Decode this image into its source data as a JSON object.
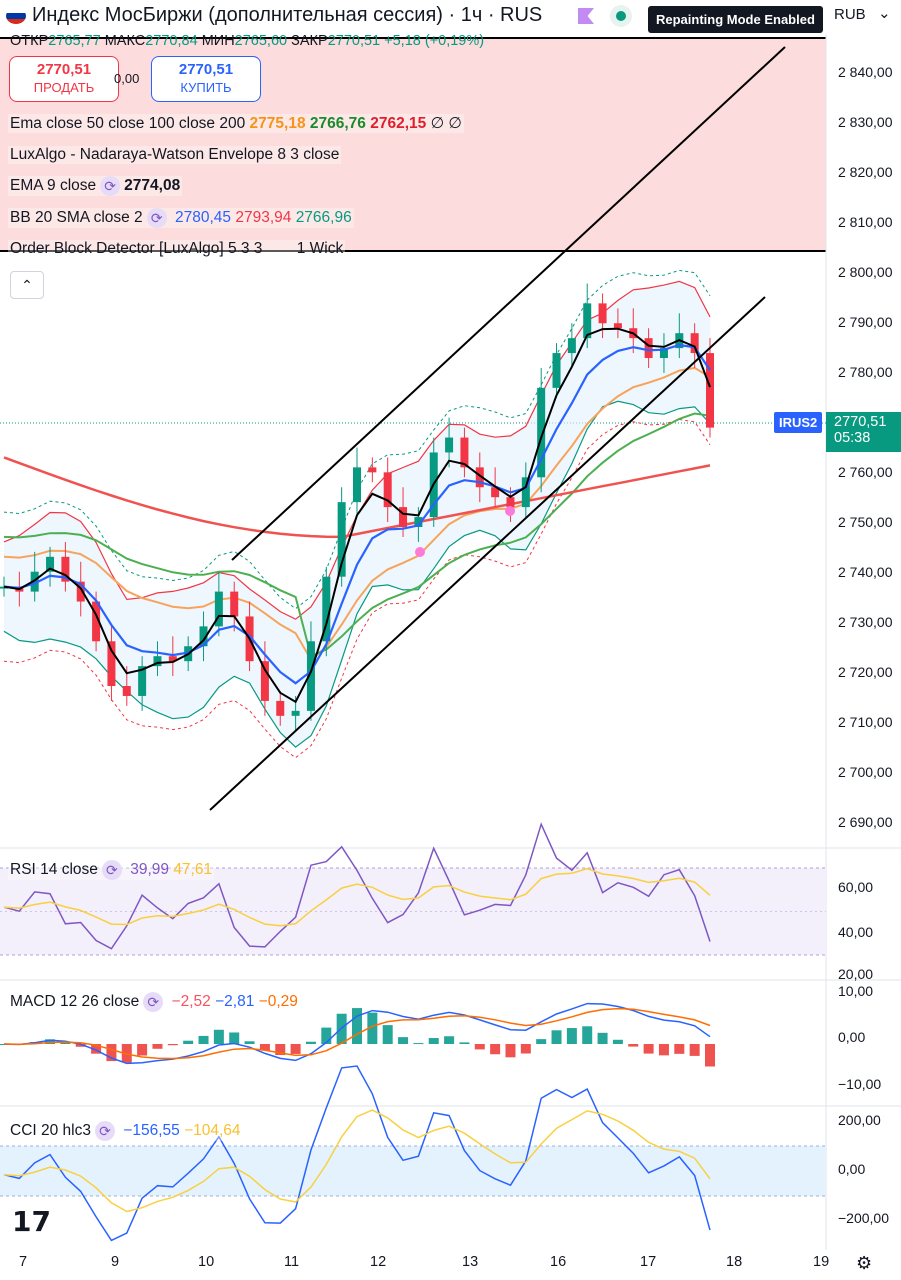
{
  "header": {
    "title": "Индекс МосБиржи (дополнительная сессия) · 1ч · RUS",
    "repaint_badge": "Repainting Mode Enabled",
    "currency": "RUB",
    "chevron": "⌄",
    "flag_colors": [
      "#ffffff",
      "#0039a6",
      "#d52b1e"
    ]
  },
  "ohlc": {
    "o_label": "ОТКР",
    "o": "2765,77",
    "h_label": "МАКС",
    "h": "2770,84",
    "l_label": "МИН",
    "l": "2765,60",
    "c_label": "ЗАКР",
    "c": "2770,51",
    "change": "+5,18 (+0,19%)"
  },
  "trade": {
    "sell_price": "2770,51",
    "sell_label": "ПРОДАТЬ",
    "spread": "0,00",
    "buy_price": "2770,51",
    "buy_label": "КУПИТЬ"
  },
  "indicators": {
    "ema": {
      "label": "Ema close 50 close 100 close 200",
      "v1": "2775,18",
      "v2": "2766,76",
      "v3": "2762,15",
      "tail": "∅ ∅"
    },
    "lux": {
      "label": "LuxAlgo - Nadaraya-Watson Envelope 8 3 close"
    },
    "ema9": {
      "label": "EMA 9 close",
      "value": "2774,08"
    },
    "bb": {
      "label": "BB 20 SMA close 2",
      "v1": "2780,45",
      "v2": "2793,94",
      "v3": "2766,96"
    },
    "ob": {
      "label": "Order Block Detector [LuxAlgo] 5 3 3",
      "tail": "1 Wick"
    },
    "collapse_icon": "⌃"
  },
  "price_axis": [
    "2 840,00",
    "2 830,00",
    "2 820,00",
    "2 810,00",
    "2 800,00",
    "2 790,00",
    "2 780,00",
    "2 770,00",
    "2 760,00",
    "2 750,00",
    "2 740,00",
    "2 730,00",
    "2 720,00",
    "2 710,00",
    "2 700,00",
    "2 690,00"
  ],
  "last_price": {
    "symbol": "IRUS2",
    "price": "2770,51",
    "countdown": "05:38"
  },
  "rsi": {
    "label": "RSI 14 close",
    "v1": "39,99",
    "v2": "47,61",
    "axis": [
      "60,00",
      "40,00",
      "20,00"
    ]
  },
  "macd": {
    "label": "MACD 12 26 close",
    "v1": "−2,52",
    "v2": "−2,81",
    "v3": "−0,29",
    "axis": [
      "10,00",
      "0,00",
      "−10,00"
    ]
  },
  "cci": {
    "label": "CCI 20 hlc3",
    "v1": "−156,55",
    "v2": "−104,64",
    "axis": [
      "200,00",
      "0,00",
      "−200,00"
    ]
  },
  "time_axis": [
    "7",
    "9",
    "10",
    "11",
    "12",
    "13",
    "16",
    "17",
    "18",
    "19"
  ],
  "logo": "17",
  "settings_icon": "⚙",
  "colors": {
    "up": "#089981",
    "down": "#f23645",
    "ema9": "#000000",
    "bb_basis": "#2962ff",
    "ema50": "#f7a35c",
    "ema100": "#4caf50",
    "ema200": "#f0524f",
    "rsi": "#7e57c2",
    "signal": "#f9d03f"
  },
  "chart_data": {
    "type": "candlestick",
    "price_range": [
      2685,
      2848
    ],
    "close_path": [
      2738,
      2737,
      2741,
      2744,
      2739,
      2735,
      2727,
      2718,
      2716,
      2722,
      2724,
      2723,
      2726,
      2730,
      2737,
      2732,
      2723,
      2715,
      2712,
      2713,
      2727,
      2740,
      2755,
      2762,
      2761,
      2754,
      2750,
      2752,
      2765,
      2768,
      2762,
      2758,
      2756,
      2754,
      2760,
      2778,
      2785,
      2788,
      2795,
      2791,
      2790,
      2788,
      2784,
      2786,
      2789,
      2785,
      2770
    ],
    "rsi_range": [
      20,
      70
    ],
    "macd_range": [
      -12,
      12
    ],
    "cci_range": [
      -250,
      240
    ]
  }
}
